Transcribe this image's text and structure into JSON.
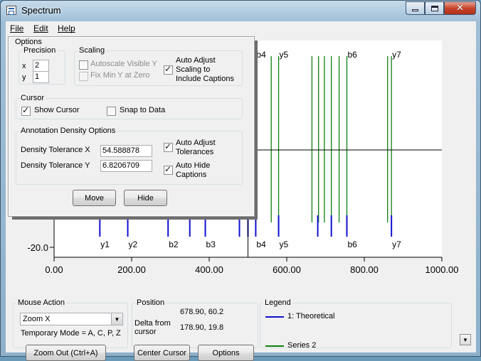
{
  "window": {
    "title": "Spectrum"
  },
  "menu": {
    "file": "File",
    "edit": "Edit",
    "help": "Help"
  },
  "options": {
    "title": "Options",
    "precision": {
      "title": "Precision",
      "x_label": "x",
      "x_value": "2",
      "y_label": "y",
      "y_value": "1"
    },
    "scaling": {
      "title": "Scaling",
      "autoscale_label": "Autoscale Visible Y",
      "autoscale_checked": false,
      "fixmin_label": "Fix Min Y at Zero",
      "fixmin_disabled": true,
      "auto_adjust_label_1": "Auto Adjust",
      "auto_adjust_label_2": "Scaling to",
      "auto_adjust_label_3": "Include Captions",
      "auto_adjust_checked": true
    },
    "cursor": {
      "title": "Cursor",
      "show_label": "Show Cursor",
      "show_checked": true,
      "snap_label": "Snap to Data",
      "snap_checked": false
    },
    "density": {
      "title": "Annotation Density Options",
      "tol_x_label": "Density Tolerance X",
      "tol_x_value": "54.588878",
      "tol_y_label": "Density Tolerance Y",
      "tol_y_value": "6.8206709",
      "auto_tol_1": "Auto Adjust",
      "auto_tol_2": "Tolerances",
      "auto_tol_checked": true,
      "auto_hide_1": "Auto Hide",
      "auto_hide_2": "Captions",
      "auto_hide_checked": true
    },
    "move_button": "Move",
    "hide_button": "Hide"
  },
  "bottom": {
    "mouse_action": {
      "title": "Mouse Action",
      "selected": "Zoom X",
      "temp_mode": "Temporary Mode = A, C, P, Z",
      "zoom_out": "Zoom Out (Ctrl+A)"
    },
    "position": {
      "title": "Position",
      "coords": "678.90, 60.2",
      "delta_label_1": "Delta from",
      "delta_label_2": "cursor",
      "delta_value": "178.90, 19.8",
      "center_cursor": "Center Cursor",
      "options_button": "Options"
    },
    "legend": {
      "title": "Legend",
      "series1": "1: Theoretical",
      "series2": "Series 2",
      "series1_color": "#1010d0",
      "series2_color": "#108010"
    }
  },
  "chart_data": {
    "type": "line",
    "xlim": [
      0,
      1000
    ],
    "x_ticks": [
      "0.00",
      "200.00",
      "400.00",
      "600.00",
      "800.00",
      "1000.00"
    ],
    "y_tick_label": "-20.0",
    "cursor": {
      "x": 500,
      "y": 40.4
    },
    "series": [
      {
        "name": "1: Theoretical",
        "color": "#1010d0",
        "peaks": [
          {
            "x": 118,
            "label": "y1"
          },
          {
            "x": 190,
            "label": "y2"
          },
          {
            "x": 294,
            "label": "b2"
          },
          {
            "x": 350
          },
          {
            "x": 390,
            "label": "b3"
          },
          {
            "x": 478
          },
          {
            "x": 500
          },
          {
            "x": 520,
            "label": "b4",
            "top_label": "b4"
          },
          {
            "x": 579,
            "label": "y5",
            "top_label": "y5"
          },
          {
            "x": 680
          },
          {
            "x": 715
          },
          {
            "x": 755,
            "label": "b6",
            "top_label": "b6"
          },
          {
            "x": 870,
            "label": "y7",
            "top_label": "y7"
          }
        ]
      },
      {
        "name": "Series 2",
        "color": "#108010",
        "x": [
          520,
          560,
          579,
          665,
          682,
          697,
          715,
          735,
          755,
          860,
          870
        ]
      }
    ]
  }
}
